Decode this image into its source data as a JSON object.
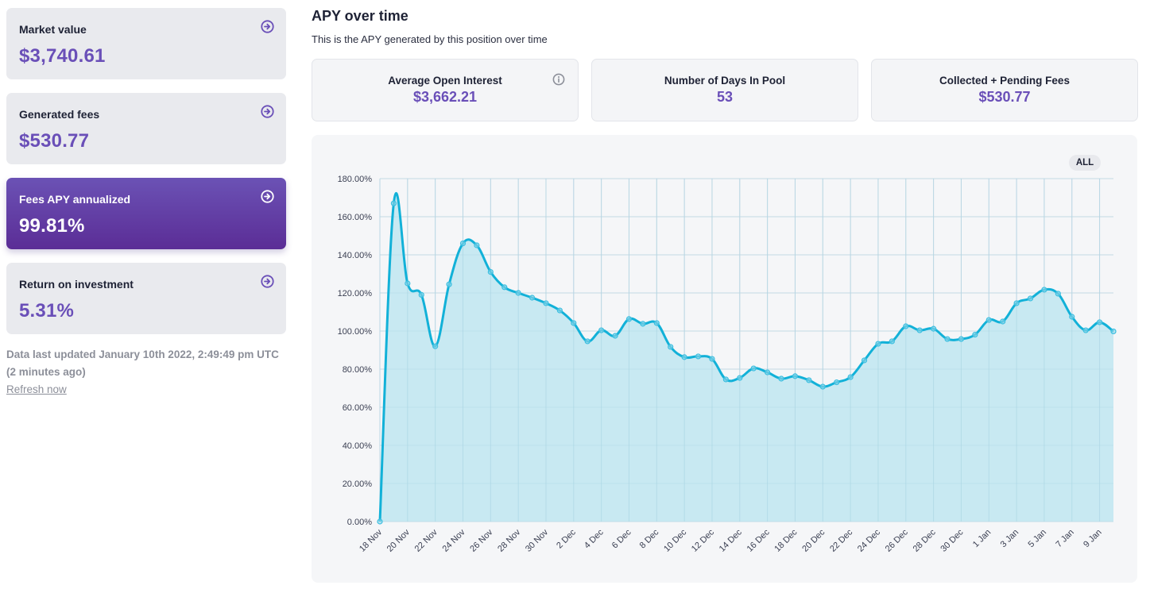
{
  "sidebar": {
    "cards": [
      {
        "label": "Market value",
        "value": "$3,740.61",
        "icon": "arrow-right-circle-icon",
        "active": false
      },
      {
        "label": "Generated fees",
        "value": "$530.77",
        "icon": "arrow-right-circle-icon",
        "active": false
      },
      {
        "label": "Fees APY annualized",
        "value": "99.81%",
        "icon": "arrow-right-circle-icon",
        "active": true
      },
      {
        "label": "Return on investment",
        "value": "5.31%",
        "icon": "arrow-right-circle-icon",
        "active": false
      }
    ],
    "updated_text": "Data last updated January 10th 2022, 2:49:49 pm UTC",
    "updated_relative": "(2 minutes ago)",
    "refresh_label": "Refresh now"
  },
  "main": {
    "title": "APY over time",
    "subtitle": "This is the APY generated by this position over time",
    "kpis": [
      {
        "label": "Average Open Interest",
        "value": "$3,662.21",
        "icon": "info-icon"
      },
      {
        "label": "Number of Days In Pool",
        "value": "53"
      },
      {
        "label": "Collected + Pending Fees",
        "value": "$530.77"
      }
    ],
    "range_button": "ALL"
  },
  "colors": {
    "accent": "#6a4fb8",
    "line": "#12b1d8",
    "area": "#c5e8f1",
    "grid": "#d3dde6"
  },
  "chart_data": {
    "type": "area",
    "title": "APY over time",
    "xlabel": "",
    "ylabel": "",
    "ylim": [
      0,
      180
    ],
    "y_ticks": [
      "0.00%",
      "20.00%",
      "40.00%",
      "60.00%",
      "80.00%",
      "100.00%",
      "120.00%",
      "140.00%",
      "160.00%",
      "180.00%"
    ],
    "x_tick_labels": [
      "18 Nov",
      "20 Nov",
      "22 Nov",
      "24 Nov",
      "26 Nov",
      "28 Nov",
      "30 Nov",
      "2 Dec",
      "4 Dec",
      "6 Dec",
      "8 Dec",
      "10 Dec",
      "12 Dec",
      "14 Dec",
      "16 Dec",
      "18 Dec",
      "20 Dec",
      "22 Dec",
      "24 Dec",
      "26 Dec",
      "28 Dec",
      "30 Dec",
      "1 Jan",
      "3 Jan",
      "5 Jan",
      "7 Jan",
      "9 Jan"
    ],
    "grid": true,
    "legend": "none",
    "series": [
      {
        "name": "APY",
        "unit": "%",
        "x": [
          "18 Nov",
          "19 Nov",
          "20 Nov",
          "21 Nov",
          "22 Nov",
          "23 Nov",
          "24 Nov",
          "25 Nov",
          "26 Nov",
          "27 Nov",
          "28 Nov",
          "29 Nov",
          "30 Nov",
          "1 Dec",
          "2 Dec",
          "3 Dec",
          "4 Dec",
          "5 Dec",
          "6 Dec",
          "7 Dec",
          "8 Dec",
          "9 Dec",
          "10 Dec",
          "11 Dec",
          "12 Dec",
          "13 Dec",
          "14 Dec",
          "15 Dec",
          "16 Dec",
          "17 Dec",
          "18 Dec",
          "19 Dec",
          "20 Dec",
          "21 Dec",
          "22 Dec",
          "23 Dec",
          "24 Dec",
          "25 Dec",
          "26 Dec",
          "27 Dec",
          "28 Dec",
          "29 Dec",
          "30 Dec",
          "31 Dec",
          "1 Jan",
          "2 Jan",
          "3 Jan",
          "4 Jan",
          "5 Jan",
          "6 Jan",
          "7 Jan",
          "8 Jan",
          "9 Jan",
          "10 Jan"
        ],
        "values": [
          0,
          167,
          125,
          119,
          92,
          124.5,
          146,
          145,
          131,
          123,
          120,
          117.5,
          114.6,
          110.8,
          104.2,
          94.6,
          100.4,
          97.5,
          106.3,
          103.8,
          104.2,
          91.7,
          86.3,
          86.7,
          85.4,
          74.6,
          75.4,
          80.4,
          78.3,
          75,
          76.3,
          74.2,
          70.8,
          73.1,
          75.8,
          84.6,
          93.3,
          94.6,
          102.5,
          100.4,
          101.2,
          95.8,
          95.8,
          98.1,
          105.8,
          105,
          114.6,
          117.1,
          121.7,
          119.6,
          107.5,
          100.4,
          104.6,
          99.81
        ]
      }
    ]
  }
}
